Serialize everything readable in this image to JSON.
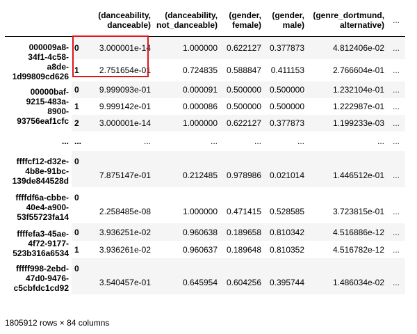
{
  "table": {
    "columns": [
      {
        "line1": "(danceability,",
        "line2": "danceable)"
      },
      {
        "line1": "(danceability,",
        "line2": "not_danceable)"
      },
      {
        "line1": "(gender,",
        "line2": "female)"
      },
      {
        "line1": "(gender,",
        "line2": "male)"
      },
      {
        "line1": "(genre_dortmund,",
        "line2": "alternative)"
      }
    ],
    "more_columns": "...",
    "groups": [
      {
        "key_lines": [
          "000009a8-",
          "34f1-4c58-",
          "a8de-",
          "1d99809cd626"
        ],
        "rows": [
          {
            "idx": "0",
            "values": [
              "3.000001e-14",
              "1.000000",
              "0.622127",
              "0.377873",
              "4.812406e-02"
            ],
            "more": "..."
          },
          {
            "idx": "1",
            "values": [
              "2.751654e-01",
              "0.724835",
              "0.588847",
              "0.411153",
              "2.766604e-01"
            ],
            "more": "..."
          }
        ]
      },
      {
        "key_lines": [
          "00000baf-",
          "9215-483a-",
          "8900-",
          "93756eaf1cfc"
        ],
        "rows": [
          {
            "idx": "0",
            "values": [
              "9.999093e-01",
              "0.000091",
              "0.500000",
              "0.500000",
              "1.232104e-01"
            ],
            "more": "..."
          },
          {
            "idx": "1",
            "values": [
              "9.999142e-01",
              "0.000086",
              "0.500000",
              "0.500000",
              "1.222987e-01"
            ],
            "more": "..."
          },
          {
            "idx": "2",
            "values": [
              "3.000001e-14",
              "1.000000",
              "0.622127",
              "0.377873",
              "1.199233e-03"
            ],
            "more": "..."
          }
        ]
      },
      {
        "ellipsis": true,
        "key": "...",
        "idx": "...",
        "values": [
          "...",
          "...",
          "...",
          "...",
          "..."
        ],
        "more": "..."
      },
      {
        "key_lines": [
          "ffffcf12-d32e-",
          "4b8e-91bc-",
          "139de844528d"
        ],
        "rows": [
          {
            "idx": "0",
            "values": [
              "7.875147e-01",
              "0.212485",
              "0.978986",
              "0.021014",
              "1.446512e-01"
            ],
            "more": "..."
          }
        ]
      },
      {
        "key_lines": [
          "ffffdf6a-cbbe-",
          "40e4-a900-",
          "53f55723fa14"
        ],
        "rows": [
          {
            "idx": "0",
            "values": [
              "2.258485e-08",
              "1.000000",
              "0.471415",
              "0.528585",
              "3.723815e-01"
            ],
            "more": "..."
          }
        ]
      },
      {
        "key_lines": [
          "ffffefa3-45ae-",
          "4f72-9177-",
          "523b316a6534"
        ],
        "rows": [
          {
            "idx": "0",
            "values": [
              "3.936251e-02",
              "0.960638",
              "0.189658",
              "0.810342",
              "4.516886e-12"
            ],
            "more": "..."
          },
          {
            "idx": "1",
            "values": [
              "3.936261e-02",
              "0.960637",
              "0.189648",
              "0.810352",
              "4.516782e-12"
            ],
            "more": "..."
          }
        ]
      },
      {
        "key_lines": [
          "fffff998-2ebd-",
          "47d0-9476-",
          "c5cbfdc1cd92"
        ],
        "rows": [
          {
            "idx": "0",
            "values": [
              "3.540457e-01",
              "0.645954",
              "0.604256",
              "0.395744",
              "1.486034e-02"
            ],
            "more": "..."
          }
        ]
      }
    ]
  },
  "footer": {
    "shape_text": "1805912 rows × 84 columns"
  },
  "colors": {
    "highlight_border": "#e0161c",
    "row_shade": "#f5f5f5"
  }
}
